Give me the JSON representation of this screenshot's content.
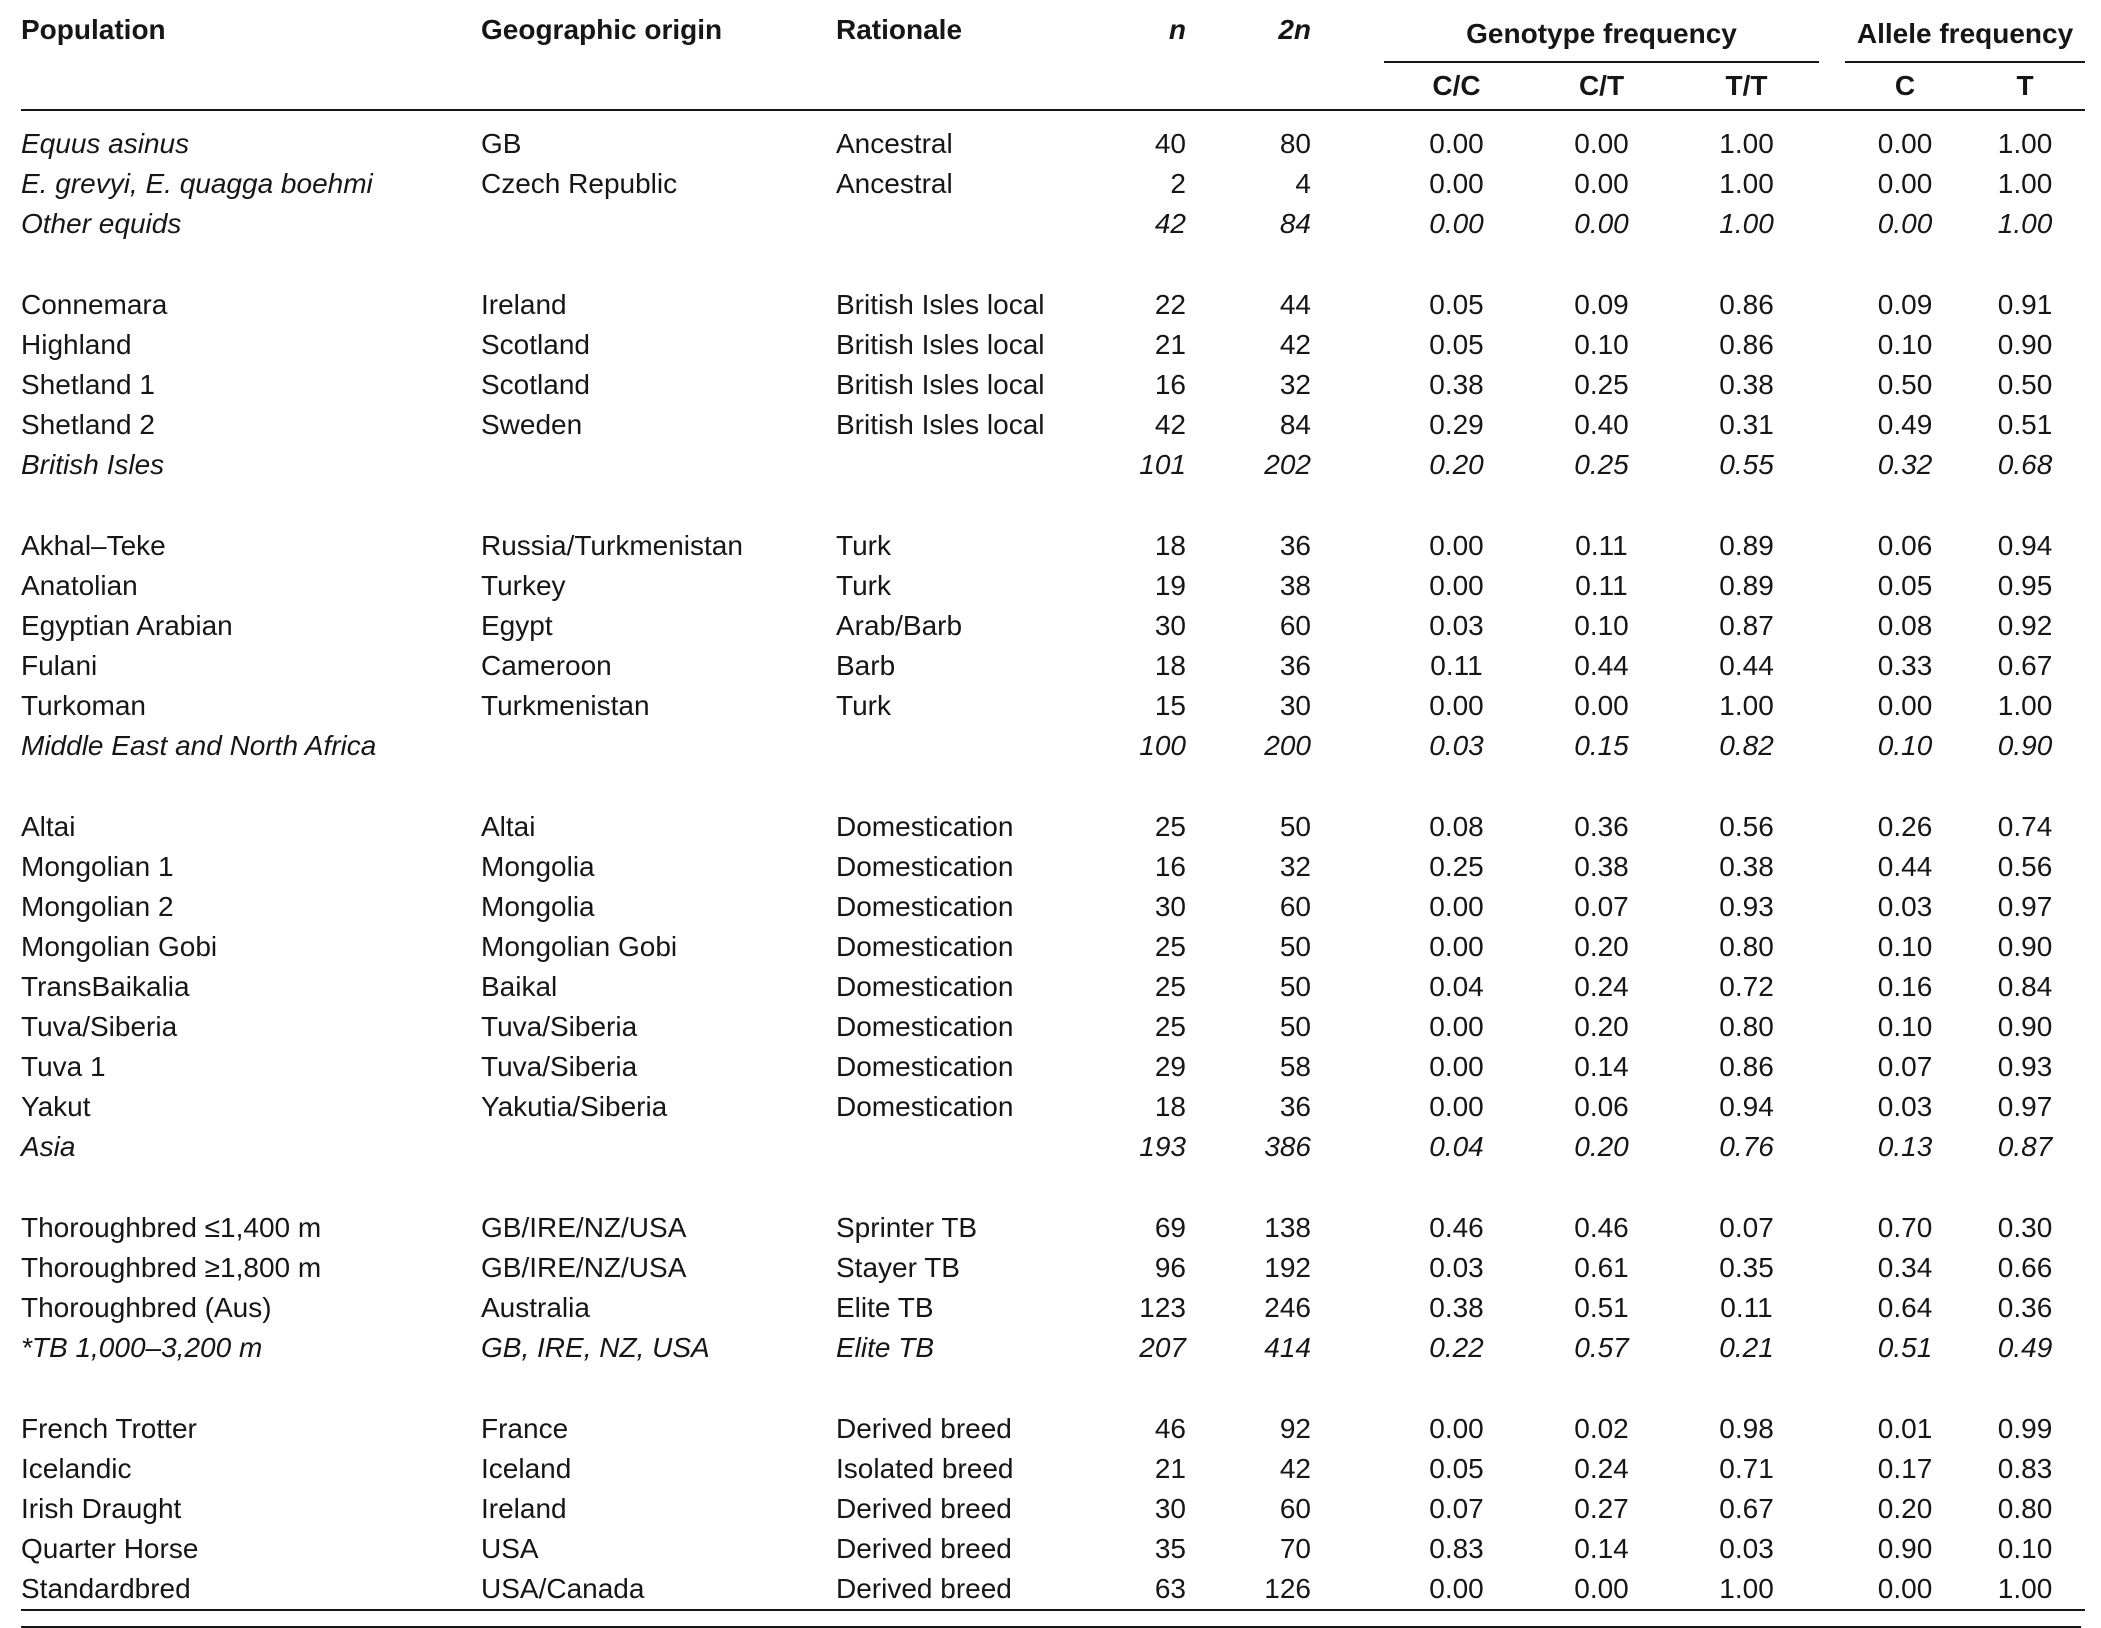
{
  "page": {
    "background_color": "#ffffff",
    "text_color": "#161616",
    "rule_color": "#161616"
  },
  "header": {
    "population": "Population",
    "origin": "Geographic origin",
    "rationale": "Rationale",
    "n": "n",
    "n2": "2n",
    "genotype_group": "Genotype frequency",
    "allele_group": "Allele frequency",
    "genotype_cols": [
      "C/C",
      "C/T",
      "T/T"
    ],
    "allele_cols": [
      "C",
      "T"
    ]
  },
  "groups": [
    {
      "rows": [
        {
          "population": "Equus asinus",
          "origin": "GB",
          "rationale": "Ancestral",
          "n": "40",
          "n2": "80",
          "freqs": [
            "0.00",
            "0.00",
            "1.00",
            "0.00",
            "1.00"
          ],
          "style": "species"
        },
        {
          "population": "E. grevyi, E. quagga boehmi",
          "origin": "Czech Republic",
          "rationale": "Ancestral",
          "n": "2",
          "n2": "4",
          "freqs": [
            "0.00",
            "0.00",
            "1.00",
            "0.00",
            "1.00"
          ],
          "style": "species"
        },
        {
          "population": "Other equids",
          "origin": "",
          "rationale": "",
          "n": "42",
          "n2": "84",
          "freqs": [
            "0.00",
            "0.00",
            "1.00",
            "0.00",
            "1.00"
          ],
          "style": "summary"
        }
      ]
    },
    {
      "rows": [
        {
          "population": "Connemara",
          "origin": "Ireland",
          "rationale": "British Isles local",
          "n": "22",
          "n2": "44",
          "freqs": [
            "0.05",
            "0.09",
            "0.86",
            "0.09",
            "0.91"
          ],
          "style": "normal"
        },
        {
          "population": "Highland",
          "origin": "Scotland",
          "rationale": "British Isles local",
          "n": "21",
          "n2": "42",
          "freqs": [
            "0.05",
            "0.10",
            "0.86",
            "0.10",
            "0.90"
          ],
          "style": "normal"
        },
        {
          "population": "Shetland 1",
          "origin": "Scotland",
          "rationale": "British Isles local",
          "n": "16",
          "n2": "32",
          "freqs": [
            "0.38",
            "0.25",
            "0.38",
            "0.50",
            "0.50"
          ],
          "style": "normal"
        },
        {
          "population": "Shetland 2",
          "origin": "Sweden",
          "rationale": "British Isles local",
          "n": "42",
          "n2": "84",
          "freqs": [
            "0.29",
            "0.40",
            "0.31",
            "0.49",
            "0.51"
          ],
          "style": "normal"
        },
        {
          "population": "British Isles",
          "origin": "",
          "rationale": "",
          "n": "101",
          "n2": "202",
          "freqs": [
            "0.20",
            "0.25",
            "0.55",
            "0.32",
            "0.68"
          ],
          "style": "summary"
        }
      ]
    },
    {
      "rows": [
        {
          "population": "Akhal–Teke",
          "origin": "Russia/Turkmenistan",
          "rationale": "Turk",
          "n": "18",
          "n2": "36",
          "freqs": [
            "0.00",
            "0.11",
            "0.89",
            "0.06",
            "0.94"
          ],
          "style": "normal"
        },
        {
          "population": "Anatolian",
          "origin": "Turkey",
          "rationale": "Turk",
          "n": "19",
          "n2": "38",
          "freqs": [
            "0.00",
            "0.11",
            "0.89",
            "0.05",
            "0.95"
          ],
          "style": "normal"
        },
        {
          "population": "Egyptian Arabian",
          "origin": "Egypt",
          "rationale": "Arab/Barb",
          "n": "30",
          "n2": "60",
          "freqs": [
            "0.03",
            "0.10",
            "0.87",
            "0.08",
            "0.92"
          ],
          "style": "normal"
        },
        {
          "population": "Fulani",
          "origin": "Cameroon",
          "rationale": "Barb",
          "n": "18",
          "n2": "36",
          "freqs": [
            "0.11",
            "0.44",
            "0.44",
            "0.33",
            "0.67"
          ],
          "style": "normal"
        },
        {
          "population": "Turkoman",
          "origin": "Turkmenistan",
          "rationale": "Turk",
          "n": "15",
          "n2": "30",
          "freqs": [
            "0.00",
            "0.00",
            "1.00",
            "0.00",
            "1.00"
          ],
          "style": "normal"
        },
        {
          "population": "Middle East and North Africa",
          "origin": "",
          "rationale": "",
          "n": "100",
          "n2": "200",
          "freqs": [
            "0.03",
            "0.15",
            "0.82",
            "0.10",
            "0.90"
          ],
          "style": "summary"
        }
      ]
    },
    {
      "rows": [
        {
          "population": "Altai",
          "origin": "Altai",
          "rationale": "Domestication",
          "n": "25",
          "n2": "50",
          "freqs": [
            "0.08",
            "0.36",
            "0.56",
            "0.26",
            "0.74"
          ],
          "style": "normal"
        },
        {
          "population": "Mongolian 1",
          "origin": "Mongolia",
          "rationale": "Domestication",
          "n": "16",
          "n2": "32",
          "freqs": [
            "0.25",
            "0.38",
            "0.38",
            "0.44",
            "0.56"
          ],
          "style": "normal"
        },
        {
          "population": "Mongolian 2",
          "origin": "Mongolia",
          "rationale": "Domestication",
          "n": "30",
          "n2": "60",
          "freqs": [
            "0.00",
            "0.07",
            "0.93",
            "0.03",
            "0.97"
          ],
          "style": "normal"
        },
        {
          "population": "Mongolian Gobi",
          "origin": "Mongolian Gobi",
          "rationale": "Domestication",
          "n": "25",
          "n2": "50",
          "freqs": [
            "0.00",
            "0.20",
            "0.80",
            "0.10",
            "0.90"
          ],
          "style": "normal"
        },
        {
          "population": "TransBaikalia",
          "origin": "Baikal",
          "rationale": "Domestication",
          "n": "25",
          "n2": "50",
          "freqs": [
            "0.04",
            "0.24",
            "0.72",
            "0.16",
            "0.84"
          ],
          "style": "normal"
        },
        {
          "population": "Tuva/Siberia",
          "origin": "Tuva/Siberia",
          "rationale": "Domestication",
          "n": "25",
          "n2": "50",
          "freqs": [
            "0.00",
            "0.20",
            "0.80",
            "0.10",
            "0.90"
          ],
          "style": "normal"
        },
        {
          "population": "Tuva 1",
          "origin": "Tuva/Siberia",
          "rationale": "Domestication",
          "n": "29",
          "n2": "58",
          "freqs": [
            "0.00",
            "0.14",
            "0.86",
            "0.07",
            "0.93"
          ],
          "style": "normal"
        },
        {
          "population": "Yakut",
          "origin": "Yakutia/Siberia",
          "rationale": "Domestication",
          "n": "18",
          "n2": "36",
          "freqs": [
            "0.00",
            "0.06",
            "0.94",
            "0.03",
            "0.97"
          ],
          "style": "normal"
        },
        {
          "population": "Asia",
          "origin": "",
          "rationale": "",
          "n": "193",
          "n2": "386",
          "freqs": [
            "0.04",
            "0.20",
            "0.76",
            "0.13",
            "0.87"
          ],
          "style": "summary"
        }
      ]
    },
    {
      "rows": [
        {
          "population": "Thoroughbred ≤1,400 m",
          "origin": "GB/IRE/NZ/USA",
          "rationale": "Sprinter TB",
          "n": "69",
          "n2": "138",
          "freqs": [
            "0.46",
            "0.46",
            "0.07",
            "0.70",
            "0.30"
          ],
          "style": "normal"
        },
        {
          "population": "Thoroughbred ≥1,800 m",
          "origin": "GB/IRE/NZ/USA",
          "rationale": "Stayer TB",
          "n": "96",
          "n2": "192",
          "freqs": [
            "0.03",
            "0.61",
            "0.35",
            "0.34",
            "0.66"
          ],
          "style": "normal"
        },
        {
          "population": "Thoroughbred (Aus)",
          "origin": "Australia",
          "rationale": "Elite TB",
          "n": "123",
          "n2": "246",
          "freqs": [
            "0.38",
            "0.51",
            "0.11",
            "0.64",
            "0.36"
          ],
          "style": "normal"
        },
        {
          "population": "*TB 1,000–3,200 m",
          "origin": "GB, IRE, NZ, USA",
          "rationale": "Elite TB",
          "n": "207",
          "n2": "414",
          "freqs": [
            "0.22",
            "0.57",
            "0.21",
            "0.51",
            "0.49"
          ],
          "style": "summary"
        }
      ]
    },
    {
      "rows": [
        {
          "population": "French Trotter",
          "origin": "France",
          "rationale": "Derived breed",
          "n": "46",
          "n2": "92",
          "freqs": [
            "0.00",
            "0.02",
            "0.98",
            "0.01",
            "0.99"
          ],
          "style": "normal"
        },
        {
          "population": "Icelandic",
          "origin": "Iceland",
          "rationale": "Isolated breed",
          "n": "21",
          "n2": "42",
          "freqs": [
            "0.05",
            "0.24",
            "0.71",
            "0.17",
            "0.83"
          ],
          "style": "normal"
        },
        {
          "population": "Irish Draught",
          "origin": "Ireland",
          "rationale": "Derived breed",
          "n": "30",
          "n2": "60",
          "freqs": [
            "0.07",
            "0.27",
            "0.67",
            "0.20",
            "0.80"
          ],
          "style": "normal"
        },
        {
          "population": "Quarter Horse",
          "origin": "USA",
          "rationale": "Derived breed",
          "n": "35",
          "n2": "70",
          "freqs": [
            "0.83",
            "0.14",
            "0.03",
            "0.90",
            "0.10"
          ],
          "style": "normal"
        },
        {
          "population": "Standardbred",
          "origin": "USA/Canada",
          "rationale": "Derived breed",
          "n": "63",
          "n2": "126",
          "freqs": [
            "0.00",
            "0.00",
            "1.00",
            "0.00",
            "1.00"
          ],
          "style": "normal"
        }
      ]
    }
  ]
}
